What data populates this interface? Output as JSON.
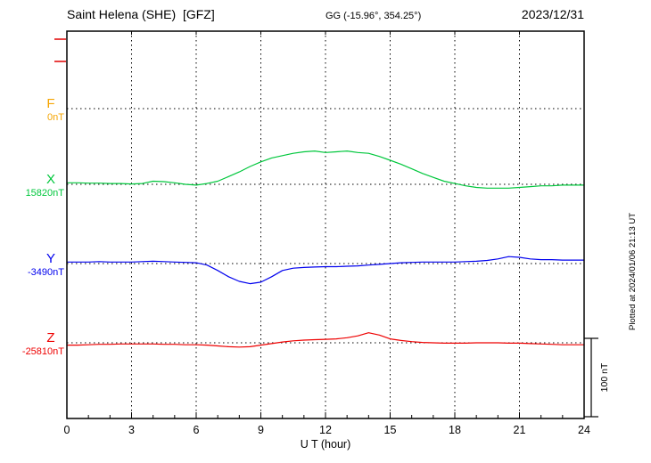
{
  "header": {
    "station": "Saint Helena (SHE)  [GFZ]",
    "coords": "GG (-15.96°, 354.25°)",
    "date": "2023/12/31"
  },
  "axis": {
    "x_ticks": [
      0,
      3,
      6,
      9,
      12,
      15,
      18,
      21,
      24
    ],
    "xlabel": "U T (hour)"
  },
  "scale_bar": {
    "label": "100 nT",
    "nT": 100
  },
  "footer_note": "Plotted at 2024/01/06 21:13 UT",
  "chart_data": {
    "type": "line",
    "title": "Magnetogram Saint Helena (SHE) [GFZ] 2023/12/31",
    "xlabel": "U T (hour)",
    "x_unit": "hour",
    "x_range": [
      0,
      24
    ],
    "value_unit": "nT, offset from each series baseline value",
    "scale_bar_nT": 100,
    "grid": "dotted vertical lines every 3 h, dotted horizontal baseline per series",
    "x": [
      0,
      0.5,
      1,
      1.5,
      2,
      2.5,
      3,
      3.5,
      4,
      4.5,
      5,
      5.5,
      6,
      6.5,
      7,
      7.5,
      8,
      8.5,
      9,
      9.5,
      10,
      10.5,
      11,
      11.5,
      12,
      12.5,
      13,
      13.5,
      14,
      14.5,
      15,
      15.5,
      16,
      16.5,
      17,
      17.5,
      18,
      18.5,
      19,
      19.5,
      20,
      20.5,
      21,
      21.5,
      22,
      22.5,
      23,
      23.5,
      24
    ],
    "series": [
      {
        "name": "F",
        "baseline_label": "0nT",
        "color": "#f5a400",
        "values": []
      },
      {
        "name": "X",
        "baseline_label": "15820nT",
        "color": "#00c73c",
        "values": [
          2,
          2,
          1.5,
          1.5,
          1,
          1,
          0.5,
          1,
          4,
          3.5,
          2,
          0,
          -1,
          1,
          4,
          10,
          16,
          23,
          29,
          34,
          37,
          40,
          42,
          43,
          41,
          42,
          43,
          41,
          40,
          36,
          31,
          26,
          20,
          14,
          9,
          4,
          1,
          -2,
          -4,
          -5,
          -5,
          -5,
          -4,
          -3,
          -2,
          -2,
          -1,
          -1,
          -1
        ]
      },
      {
        "name": "Y",
        "baseline_label": "-3490nT",
        "color": "#0000ee",
        "values": [
          2,
          2,
          2,
          2.5,
          2,
          2,
          2,
          2.5,
          3,
          2.5,
          2,
          1.5,
          1,
          -2,
          -9,
          -17,
          -23,
          -26,
          -24,
          -17,
          -9,
          -6,
          -5,
          -4.5,
          -4,
          -4,
          -3.5,
          -3,
          -2,
          -1,
          0,
          1,
          1.5,
          2,
          2,
          2,
          2,
          2.5,
          3,
          4,
          6,
          9,
          8,
          6,
          5,
          5,
          4.5,
          4.5,
          4.5
        ]
      },
      {
        "name": "Z",
        "baseline_label": "-25810nT",
        "color": "#ee0000",
        "values": [
          -3,
          -3,
          -2.5,
          -2,
          -2,
          -1.5,
          -1.5,
          -1.5,
          -1.5,
          -2,
          -2,
          -2.5,
          -2.5,
          -3,
          -4,
          -5,
          -5.5,
          -5,
          -3,
          -1,
          1,
          2.5,
          3.5,
          4,
          4.5,
          5,
          6.5,
          9,
          13,
          10,
          5,
          3,
          1.5,
          0.5,
          0,
          -0.5,
          -0.5,
          -0.5,
          0,
          0,
          0,
          -0.5,
          -0.5,
          -1,
          -1.5,
          -2,
          -2.5,
          -2.5,
          -2.5
        ]
      }
    ]
  }
}
